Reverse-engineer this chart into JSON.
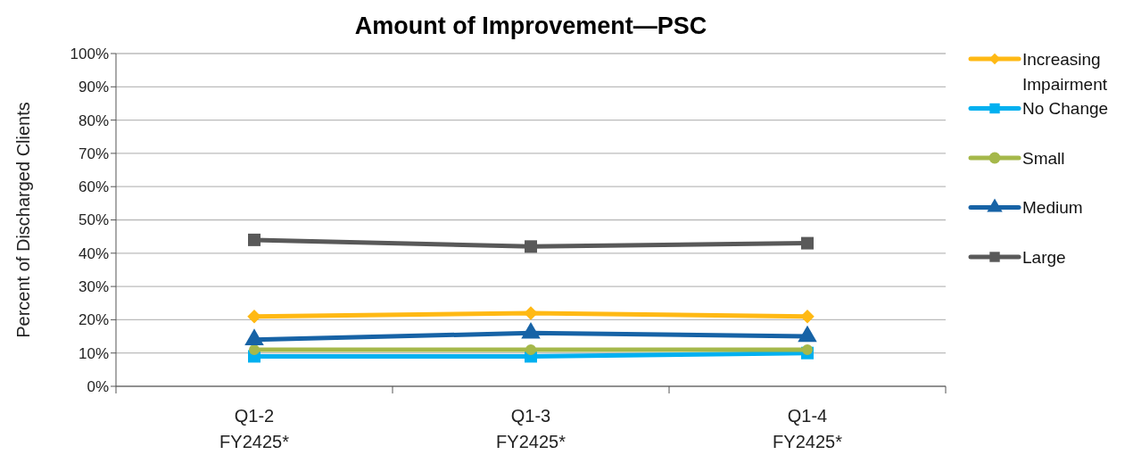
{
  "chart_data": {
    "type": "line",
    "title": "Amount of Improvement—PSC",
    "ylabel": "Percent of Discharged Clients",
    "categories": [
      "Q1-2\nFY2425*",
      "Q1-3\nFY2425*",
      "Q1-4\nFY2425*"
    ],
    "ylim": [
      0,
      100
    ],
    "yticks": [
      {
        "value": 0,
        "label": "0%"
      },
      {
        "value": 10,
        "label": "10%"
      },
      {
        "value": 20,
        "label": "20%"
      },
      {
        "value": 30,
        "label": "30%"
      },
      {
        "value": 40,
        "label": "40%"
      },
      {
        "value": 50,
        "label": "50%"
      },
      {
        "value": 60,
        "label": "60%"
      },
      {
        "value": 70,
        "label": "70%"
      },
      {
        "value": 80,
        "label": "80%"
      },
      {
        "value": 90,
        "label": "90%"
      },
      {
        "value": 100,
        "label": "100%"
      }
    ],
    "grid": "y",
    "legend": "right",
    "series": [
      {
        "name": "Increasing Impairment",
        "color": "#ffb914",
        "marker": "diamond",
        "values": [
          21,
          22,
          21
        ]
      },
      {
        "name": "No Change",
        "color": "#00b0f0",
        "marker": "square",
        "values": [
          9,
          9,
          10
        ]
      },
      {
        "name": "Small",
        "color": "#a5b84a",
        "marker": "circle",
        "values": [
          11,
          11,
          11
        ]
      },
      {
        "name": "Medium",
        "color": "#1763a6",
        "marker": "triangle",
        "values": [
          14,
          16,
          15
        ]
      },
      {
        "name": "Large",
        "color": "#595959",
        "marker": "square",
        "values": [
          44,
          42,
          43
        ]
      }
    ]
  }
}
